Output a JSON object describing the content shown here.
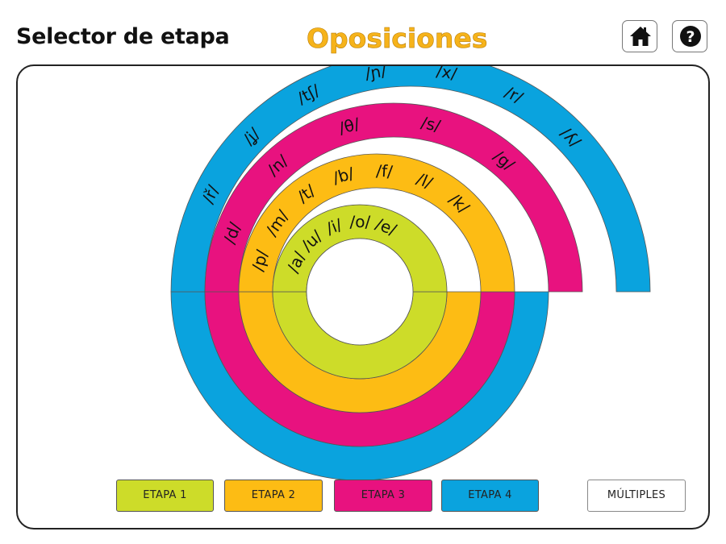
{
  "header": {
    "title": "Selector de etapa",
    "brand": "Oposiciones"
  },
  "toolbar": {
    "home_icon": "home-icon",
    "help_icon": "help-icon"
  },
  "colors": {
    "stage1": "#cddc29",
    "stage2": "#fdbc14",
    "stage3": "#e8127f",
    "stage4": "#0aa3de",
    "brand": "#f6b31a"
  },
  "stages": [
    {
      "id": "etapa-1",
      "label": "ETAPA 1",
      "color": "#cddc29",
      "sounds": [
        "/a/",
        "/u/",
        "/i/",
        "/o/",
        "/e/"
      ]
    },
    {
      "id": "etapa-2",
      "label": "ETAPA 2",
      "color": "#fdbc14",
      "sounds": [
        "/p/",
        "/m/",
        "/t/",
        "/b/",
        "/f/",
        "/l/",
        "/k/"
      ]
    },
    {
      "id": "etapa-3",
      "label": "ETAPA 3",
      "color": "#e8127f",
      "sounds": [
        "/d/",
        "/n/",
        "/θ/",
        "/s/",
        "/g/"
      ]
    },
    {
      "id": "etapa-4",
      "label": "ETAPA 4",
      "color": "#0aa3de",
      "sounds": [
        "/ř/",
        "/ʝ/",
        "/tʃ/",
        "/ɲ/",
        "/x/",
        "/r/",
        "/ʎ/"
      ]
    }
  ],
  "multiples": {
    "label": "MÚLTIPLES"
  }
}
